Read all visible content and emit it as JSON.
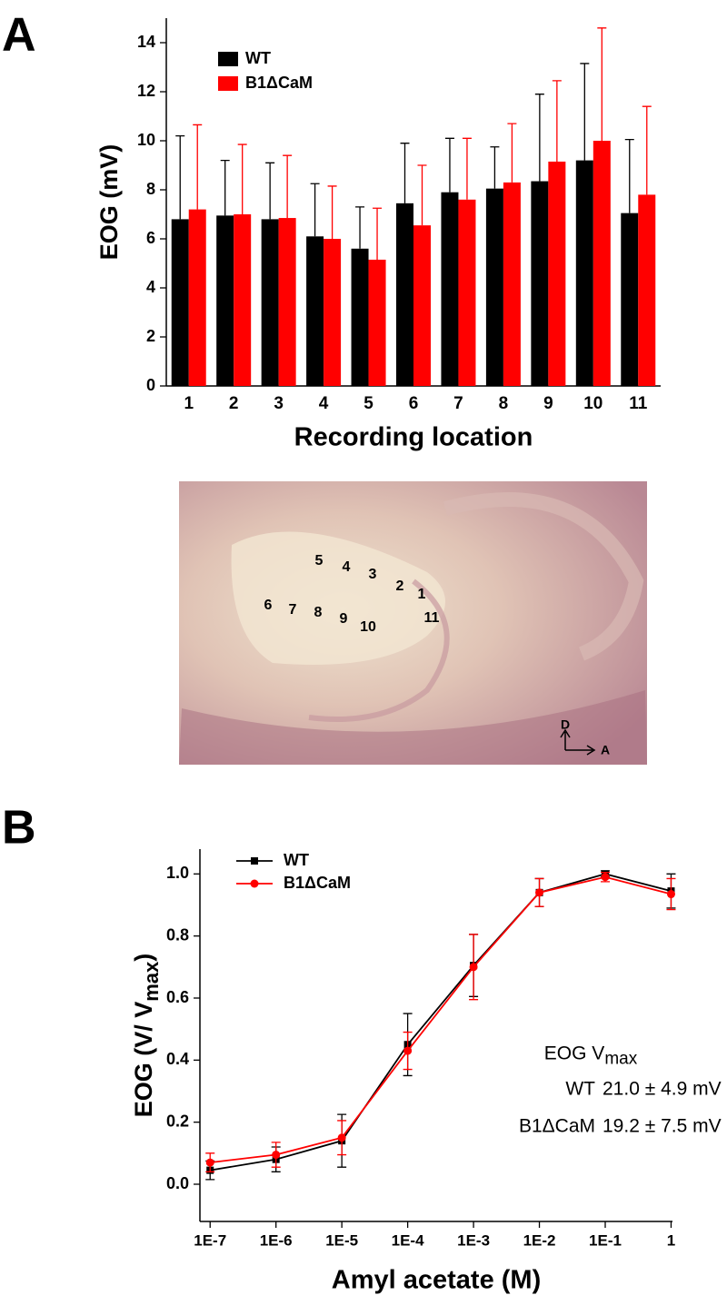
{
  "chart_data": [
    {
      "panel": "A",
      "type": "bar",
      "categories": [
        "1",
        "2",
        "3",
        "4",
        "5",
        "6",
        "7",
        "8",
        "9",
        "10",
        "11"
      ],
      "series": [
        {
          "name": "WT",
          "color": "#000000",
          "values": [
            6.8,
            6.95,
            6.8,
            6.1,
            5.6,
            7.45,
            7.9,
            8.05,
            8.35,
            9.2,
            7.05
          ],
          "errors": [
            3.4,
            2.25,
            2.3,
            2.15,
            1.7,
            2.45,
            2.2,
            1.7,
            3.55,
            3.95,
            3.0
          ]
        },
        {
          "name": "B1ΔCaM",
          "color": "#ff0000",
          "values": [
            7.2,
            7.0,
            6.85,
            6.0,
            5.15,
            6.55,
            7.6,
            8.3,
            9.15,
            10.0,
            7.8
          ],
          "errors": [
            3.45,
            2.85,
            2.55,
            2.15,
            2.1,
            2.45,
            2.5,
            2.4,
            3.3,
            4.6,
            3.6
          ]
        }
      ],
      "xlabel": "Recording location",
      "ylabel": "EOG (mV)",
      "ylim": [
        0,
        15
      ],
      "yticks": [
        0,
        2,
        4,
        6,
        8,
        10,
        12,
        14
      ],
      "legend": "upper left"
    },
    {
      "panel": "B",
      "type": "line",
      "xscale": "log",
      "x": [
        1e-07,
        1e-06,
        1e-05,
        0.0001,
        0.001,
        0.01,
        0.1,
        1
      ],
      "xlim": [
        7e-08,
        1.05
      ],
      "xticks": [
        {
          "value": 1e-07,
          "label": "1E-7"
        },
        {
          "value": 1e-06,
          "label": "1E-6"
        },
        {
          "value": 1e-05,
          "label": "1E-5"
        },
        {
          "value": 0.0001,
          "label": "1E-4"
        },
        {
          "value": 0.001,
          "label": "1E-3"
        },
        {
          "value": 0.01,
          "label": "1E-2"
        },
        {
          "value": 0.1,
          "label": "1E-1"
        },
        1
      ],
      "series": [
        {
          "name": "WT",
          "color": "#000000",
          "marker": "square",
          "values": [
            0.045,
            0.08,
            0.14,
            0.45,
            0.705,
            0.94,
            1.0,
            0.945
          ],
          "errors": [
            0.03,
            0.04,
            0.085,
            0.1,
            0.1,
            0.045,
            0.01,
            0.055
          ]
        },
        {
          "name": "B1ΔCaM",
          "color": "#ff0000",
          "marker": "circle",
          "values": [
            0.07,
            0.095,
            0.15,
            0.43,
            0.7,
            0.94,
            0.99,
            0.935
          ],
          "errors": [
            0.03,
            0.04,
            0.055,
            0.06,
            0.105,
            0.045,
            0.015,
            0.05
          ]
        }
      ],
      "xlabel": "Amyl acetate (M)",
      "ylabel": [
        "EOG (V/ V",
        "max",
        ")"
      ],
      "ylim": [
        -0.12,
        1.08
      ],
      "yticks": [
        {
          "value": 0,
          "label": "0.0"
        },
        0.2,
        0.4,
        0.6,
        0.8,
        {
          "value": 1,
          "label": "1.0"
        }
      ],
      "legend": "upper left",
      "annotation": {
        "title": [
          "EOG V",
          "max"
        ],
        "rows": [
          [
            "WT",
            "21.0 ± 4.9 mV"
          ],
          [
            "B1ΔCaM",
            "19.2 ± 7.5 mV"
          ]
        ]
      }
    }
  ],
  "photo": {
    "labels": [
      "5",
      "4",
      "3",
      "2",
      "1",
      "6",
      "7",
      "8",
      "9",
      "10",
      "11"
    ],
    "compass": [
      "D",
      "A"
    ]
  }
}
